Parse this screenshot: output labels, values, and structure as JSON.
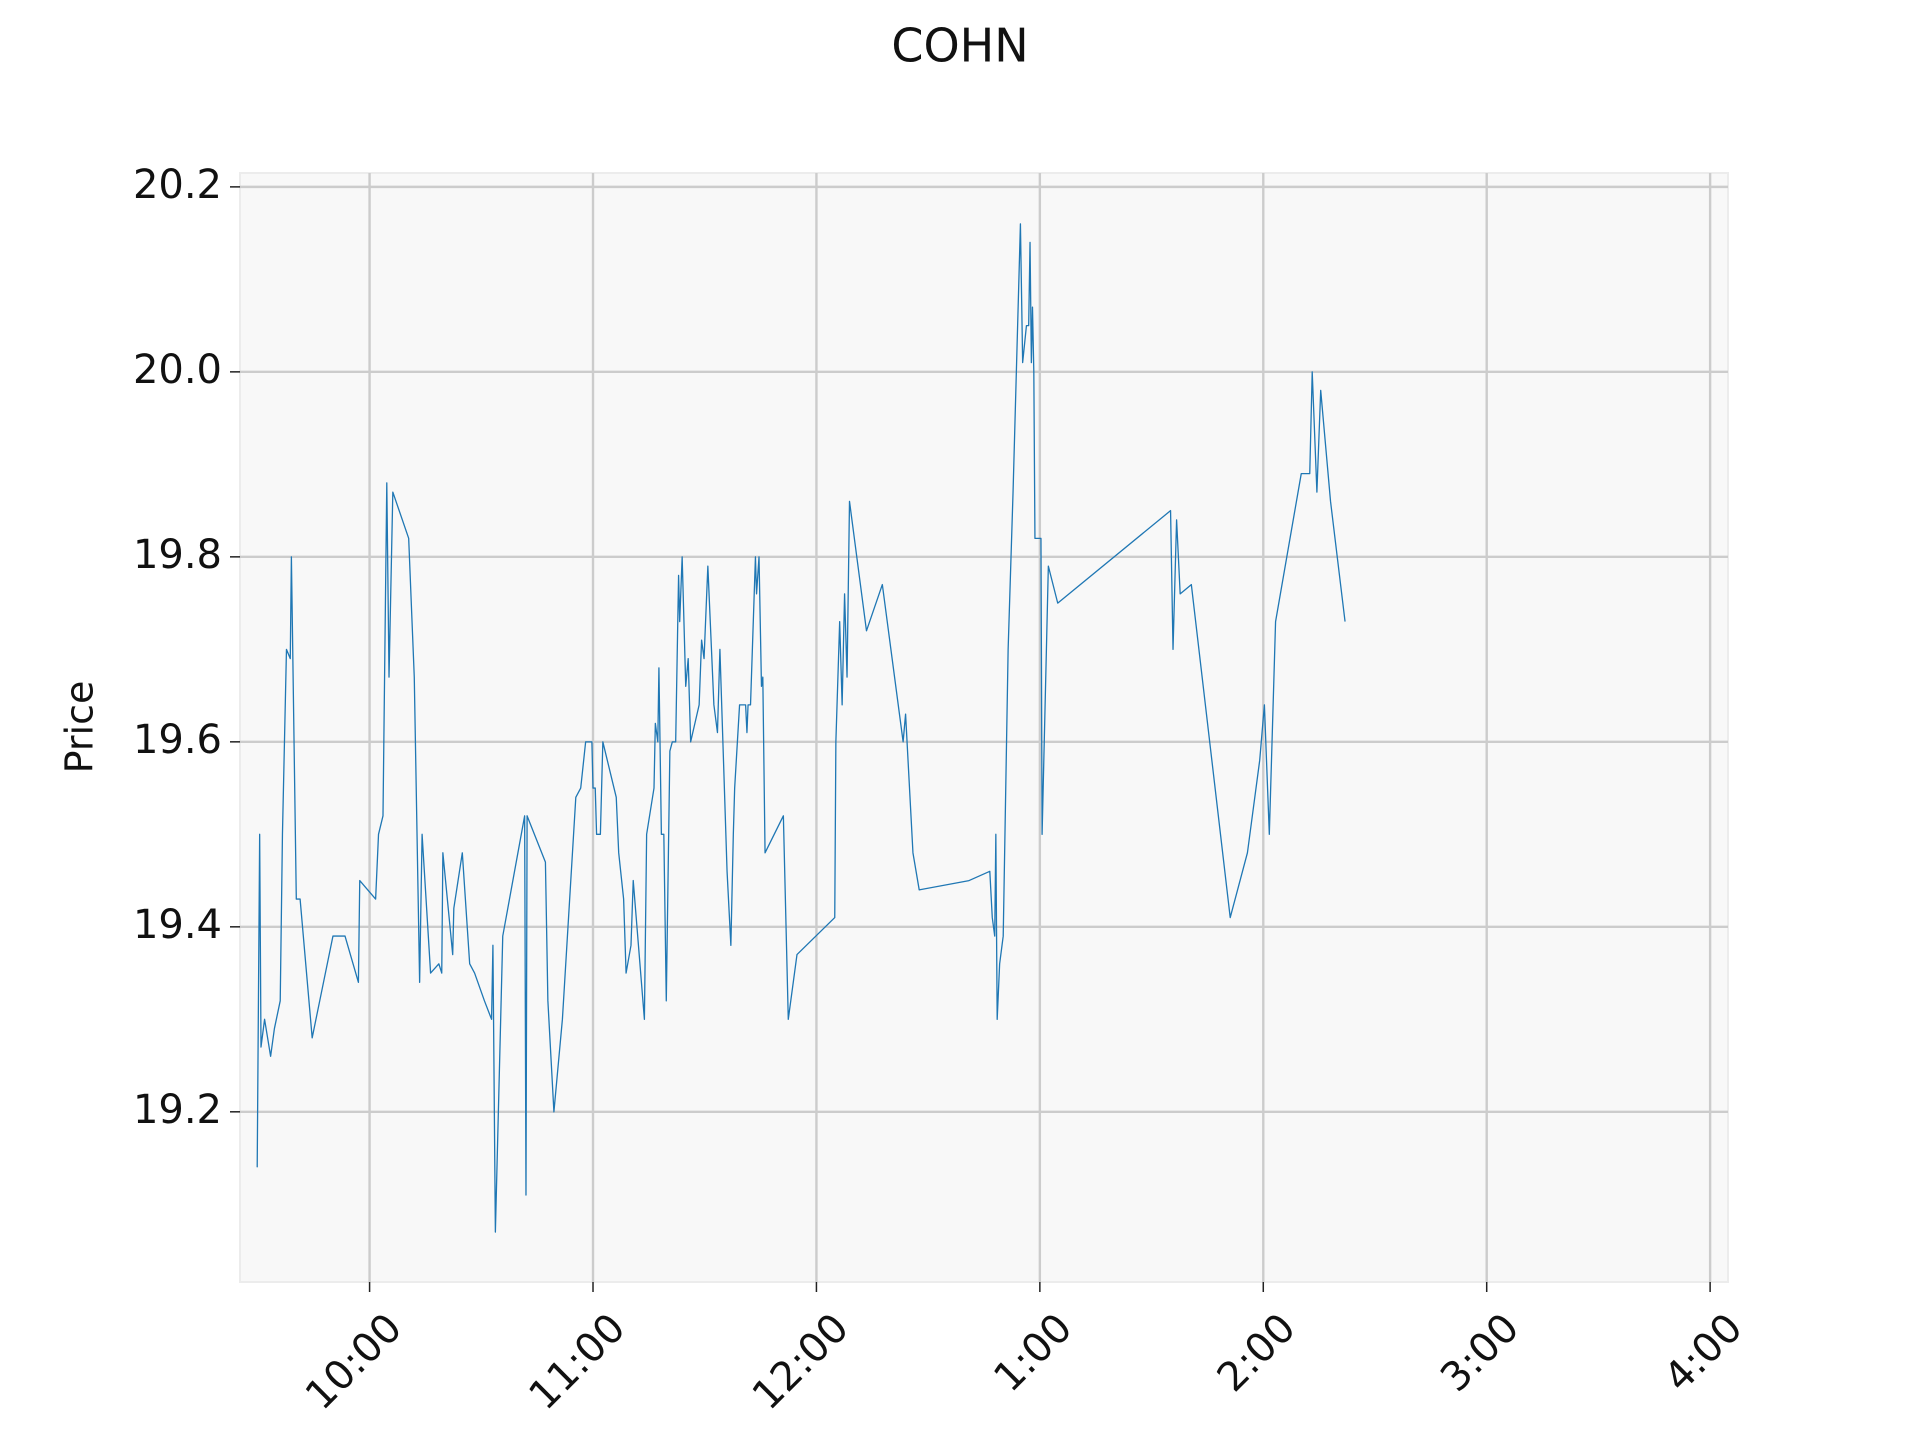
{
  "chart_data": {
    "type": "line",
    "title": "COHN",
    "y_label": "Price",
    "x": [
      9.497,
      9.508,
      9.514,
      9.53,
      9.557,
      9.574,
      9.6,
      9.61,
      9.628,
      9.645,
      9.65,
      9.672,
      9.689,
      9.743,
      9.836,
      9.89,
      9.95,
      9.956,
      10.027,
      10.04,
      10.06,
      10.077,
      10.087,
      10.104,
      10.175,
      10.2,
      10.224,
      10.235,
      10.273,
      10.31,
      10.323,
      10.328,
      10.372,
      10.377,
      10.415,
      10.448,
      10.47,
      10.514,
      10.546,
      10.552,
      10.563,
      10.596,
      10.694,
      10.7,
      10.705,
      10.787,
      10.798,
      10.825,
      10.863,
      10.923,
      10.945,
      10.967,
      10.995,
      11.0,
      11.01,
      11.016,
      11.033,
      11.044,
      11.104,
      11.115,
      11.137,
      11.148,
      11.17,
      11.18,
      11.23,
      11.24,
      11.273,
      11.279,
      11.29,
      11.295,
      11.306,
      11.317,
      11.328,
      11.344,
      11.355,
      11.37,
      11.383,
      11.388,
      11.399,
      11.415,
      11.426,
      11.437,
      11.475,
      11.486,
      11.497,
      11.514,
      11.541,
      11.557,
      11.568,
      11.6,
      11.617,
      11.628,
      11.634,
      11.656,
      11.683,
      11.689,
      11.694,
      11.705,
      11.727,
      11.732,
      11.743,
      11.754,
      11.76,
      11.77,
      11.852,
      11.874,
      11.913,
      12.082,
      12.087,
      12.104,
      12.115,
      12.126,
      12.137,
      12.148,
      12.224,
      12.295,
      12.388,
      12.399,
      12.421,
      12.432,
      12.46,
      12.683,
      12.776,
      12.787,
      12.798,
      12.803,
      12.809,
      12.82,
      12.836,
      12.858,
      12.88,
      12.913,
      12.923,
      12.94,
      12.95,
      12.956,
      12.962,
      12.967,
      12.973,
      12.978,
      13.005,
      13.01,
      13.038,
      13.08,
      13.585,
      13.596,
      13.612,
      13.628,
      13.678,
      13.852,
      13.929,
      13.984,
      14.005,
      14.027,
      14.055,
      14.17,
      14.208,
      14.219,
      14.24,
      14.257,
      14.301,
      14.366
    ],
    "values": [
      19.14,
      19.5,
      19.27,
      19.3,
      19.26,
      19.29,
      19.32,
      19.5,
      19.7,
      19.69,
      19.8,
      19.43,
      19.43,
      19.28,
      19.39,
      19.39,
      19.34,
      19.45,
      19.43,
      19.5,
      19.52,
      19.88,
      19.67,
      19.87,
      19.82,
      19.67,
      19.34,
      19.5,
      19.35,
      19.36,
      19.35,
      19.48,
      19.37,
      19.42,
      19.48,
      19.36,
      19.35,
      19.32,
      19.3,
      19.38,
      19.07,
      19.39,
      19.52,
      19.11,
      19.52,
      19.47,
      19.32,
      19.2,
      19.3,
      19.54,
      19.55,
      19.6,
      19.6,
      19.55,
      19.55,
      19.5,
      19.5,
      19.6,
      19.54,
      19.48,
      19.43,
      19.35,
      19.38,
      19.45,
      19.3,
      19.5,
      19.55,
      19.62,
      19.6,
      19.68,
      19.5,
      19.5,
      19.32,
      19.59,
      19.6,
      19.6,
      19.78,
      19.73,
      19.8,
      19.66,
      19.69,
      19.6,
      19.64,
      19.71,
      19.69,
      19.79,
      19.64,
      19.61,
      19.7,
      19.46,
      19.38,
      19.5,
      19.55,
      19.64,
      19.64,
      19.61,
      19.64,
      19.64,
      19.8,
      19.76,
      19.8,
      19.66,
      19.67,
      19.48,
      19.52,
      19.3,
      19.37,
      19.41,
      19.6,
      19.73,
      19.64,
      19.76,
      19.67,
      19.86,
      19.72,
      19.77,
      19.6,
      19.63,
      19.53,
      19.48,
      19.44,
      19.45,
      19.46,
      19.41,
      19.39,
      19.5,
      19.3,
      19.36,
      19.39,
      19.7,
      19.87,
      20.16,
      20.01,
      20.05,
      20.05,
      20.14,
      20.01,
      20.07,
      20.0,
      19.82,
      19.82,
      19.5,
      19.79,
      19.75,
      19.85,
      19.7,
      19.84,
      19.76,
      19.77,
      19.41,
      19.48,
      19.58,
      19.64,
      19.5,
      19.73,
      19.89,
      19.89,
      20.0,
      19.87,
      19.98,
      19.86,
      19.73
    ],
    "color": "#1f77b4",
    "xlim": [
      9.42,
      16.08
    ],
    "xticks": [
      {
        "value": 10,
        "label": "10:00"
      },
      {
        "value": 11,
        "label": "11:00"
      },
      {
        "value": 12,
        "label": "12:00"
      },
      {
        "value": 13,
        "label": "1:00"
      },
      {
        "value": 14,
        "label": "2:00"
      },
      {
        "value": 15,
        "label": "3:00"
      },
      {
        "value": 16,
        "label": "4:00"
      }
    ],
    "ylim": [
      19.016,
      20.215
    ],
    "yticks": [
      {
        "value": 19.2,
        "label": "19.2"
      },
      {
        "value": 19.4,
        "label": "19.4"
      },
      {
        "value": 19.6,
        "label": "19.6"
      },
      {
        "value": 19.8,
        "label": "19.8"
      },
      {
        "value": 20.0,
        "label": "20.0"
      },
      {
        "value": 20.2,
        "label": "20.2"
      }
    ],
    "grid": true
  }
}
